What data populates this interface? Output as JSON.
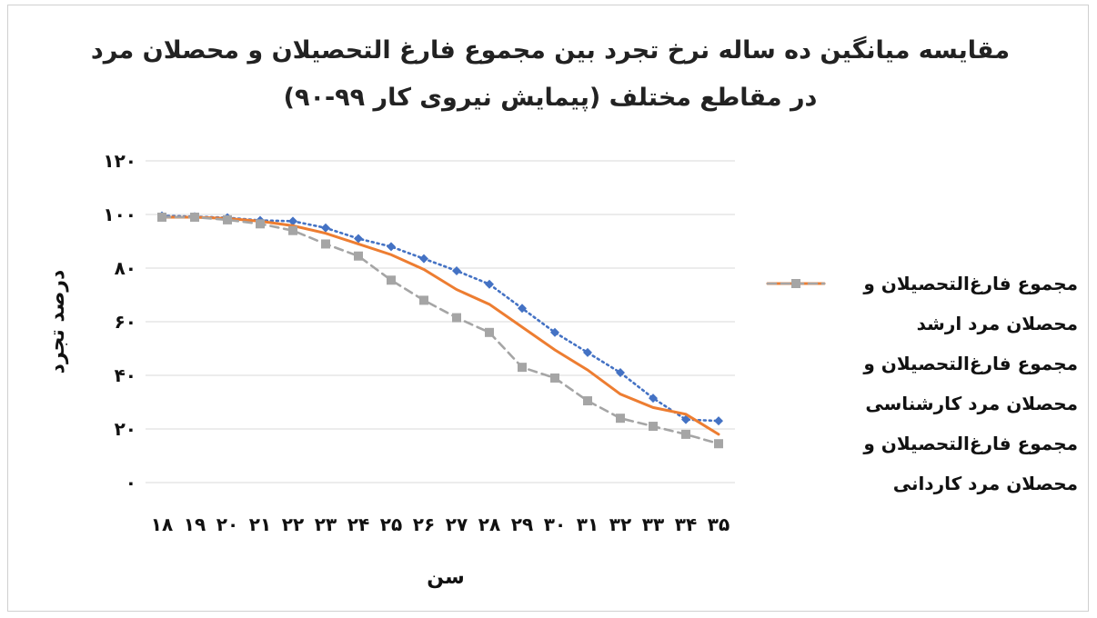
{
  "chart_data": {
    "type": "line",
    "title_line1": "مقایسه میانگین ده ساله نرخ تجرد بین مجموع فارغ التحصیلان و محصلان مرد",
    "title_line2": "در مقاطع مختلف (پیمایش نیروی کار ۹۹-۹۰)",
    "xlabel": "سن",
    "ylabel": "درصد تجرد",
    "ylim": [
      0,
      120
    ],
    "yticks": [
      0,
      20,
      40,
      60,
      80,
      100,
      120
    ],
    "ytick_labels": [
      "۰",
      "۲۰",
      "۴۰",
      "۶۰",
      "۸۰",
      "۱۰۰",
      "۱۲۰"
    ],
    "categories": [
      "۱۸",
      "۱۹",
      "۲۰",
      "۲۱",
      "۲۲",
      "۲۳",
      "۲۴",
      "۲۵",
      "۲۶",
      "۲۷",
      "۲۸",
      "۲۹",
      "۳۰",
      "۳۱",
      "۳۲",
      "۳۳",
      "۳۴",
      "۳۵"
    ],
    "grid": true,
    "legend_position": "right",
    "series": [
      {
        "name": "مجموع فارغ‌التحصیلان و محصلان مرد ارشد",
        "name_line1": "مجموع فارغ‌التحصیلان و",
        "name_line2": "محصلان مرد ارشد",
        "color": "#4472C4",
        "style": "dotted",
        "marker": "diamond",
        "values": [
          99.5,
          99.2,
          98.8,
          97.8,
          97.5,
          95,
          91,
          88,
          83.5,
          79,
          74,
          65,
          56,
          48.5,
          41,
          31.5,
          23.5,
          23
        ]
      },
      {
        "name": "مجموع فارغ‌التحصیلان و محصلان مرد کارشناسی",
        "name_line1": "مجموع فارغ‌التحصیلان و",
        "name_line2": "محصلان مرد کارشناسی",
        "color": "#ED7D31",
        "style": "solid",
        "marker": "none",
        "values": [
          99,
          99,
          98.5,
          97.5,
          95.8,
          93,
          89,
          85,
          79.5,
          72,
          66.5,
          58,
          49.5,
          42,
          33,
          28,
          25.5,
          18
        ]
      },
      {
        "name": "مجموع فارغ‌التحصیلان و محصلان مرد کاردانی",
        "name_line1": "مجموع فارغ‌التحصیلان و",
        "name_line2": "محصلان مرد کاردانی",
        "color": "#A5A5A5",
        "style": "dashed",
        "marker": "square",
        "values": [
          99,
          99,
          98,
          96.5,
          94,
          89,
          84.5,
          75.5,
          68,
          61.5,
          56,
          43,
          39,
          30.5,
          24,
          21,
          18,
          14.5
        ]
      }
    ]
  }
}
